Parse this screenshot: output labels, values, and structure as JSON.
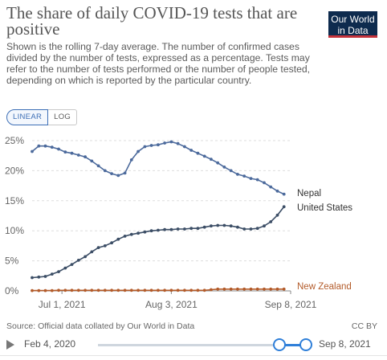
{
  "header": {
    "title": "The share of daily COVID-19 tests that are positive",
    "subtitle": "Shown is the rolling 7-day average. The number of confirmed cases divided by the number of tests, expressed as a percentage. Tests may refer to the number of tests performed or the number of people tested, depending on which is reported by the particular country."
  },
  "logo": {
    "line1": "Our World",
    "line2": "in Data"
  },
  "scale_toggle": {
    "linear": "LINEAR",
    "log": "LOG",
    "active": "LINEAR"
  },
  "footer": {
    "source": "Source: Official data collated by Our World in Data",
    "license": "CC BY"
  },
  "timeline": {
    "start": "Feb 4, 2020",
    "end": "Sep 8, 2021"
  },
  "colors": {
    "nepal": "#4c6a9c",
    "united_states": "#3c4e66",
    "new_zealand": "#b35b2a",
    "grid": "#dddddd",
    "logo_bg": "#0e2b4e",
    "logo_accent": "#c4323a",
    "slider": "#2f7fd9"
  },
  "chart_data": {
    "type": "line",
    "title": "The share of daily COVID-19 tests that are positive",
    "xlabel": "",
    "ylabel": "",
    "y_unit": "%",
    "ylim": [
      0,
      25
    ],
    "yticks": [
      0,
      5,
      10,
      15,
      20,
      25
    ],
    "ytick_labels": [
      "0%",
      "5%",
      "10%",
      "15%",
      "20%",
      "25%"
    ],
    "xlim": [
      "2021-06-22",
      "2021-09-08"
    ],
    "xticks": [
      "2021-07-01",
      "2021-08-03",
      "2021-09-08"
    ],
    "xtick_labels": [
      "Jul 1, 2021",
      "Aug 3, 2021",
      "Sep 8, 2021"
    ],
    "grid": true,
    "legend": "right end labels",
    "series": [
      {
        "name": "Nepal",
        "color": "#4c6a9c",
        "x": [
          "2021-06-22",
          "2021-06-24",
          "2021-06-26",
          "2021-06-28",
          "2021-06-30",
          "2021-07-02",
          "2021-07-04",
          "2021-07-06",
          "2021-07-08",
          "2021-07-10",
          "2021-07-12",
          "2021-07-14",
          "2021-07-16",
          "2021-07-18",
          "2021-07-20",
          "2021-07-22",
          "2021-07-24",
          "2021-07-26",
          "2021-07-28",
          "2021-07-30",
          "2021-08-01",
          "2021-08-03",
          "2021-08-05",
          "2021-08-07",
          "2021-08-09",
          "2021-08-11",
          "2021-08-13",
          "2021-08-15",
          "2021-08-17",
          "2021-08-19",
          "2021-08-21",
          "2021-08-23",
          "2021-08-25",
          "2021-08-27",
          "2021-08-29",
          "2021-08-31",
          "2021-09-02",
          "2021-09-04",
          "2021-09-06"
        ],
        "values": [
          23.2,
          24.1,
          24.1,
          23.9,
          23.6,
          23.1,
          22.9,
          22.6,
          22.3,
          21.6,
          20.8,
          20.0,
          19.5,
          19.2,
          19.6,
          21.8,
          23.2,
          24.0,
          24.2,
          24.3,
          24.6,
          24.8,
          24.5,
          24.0,
          23.4,
          22.9,
          22.4,
          21.9,
          21.3,
          20.6,
          20.0,
          19.4,
          19.1,
          18.7,
          18.5,
          18.0,
          17.3,
          16.6,
          16.1
        ]
      },
      {
        "name": "United States",
        "color": "#3c4e66",
        "x": [
          "2021-06-22",
          "2021-06-24",
          "2021-06-26",
          "2021-06-28",
          "2021-06-30",
          "2021-07-02",
          "2021-07-04",
          "2021-07-06",
          "2021-07-08",
          "2021-07-10",
          "2021-07-12",
          "2021-07-14",
          "2021-07-16",
          "2021-07-18",
          "2021-07-20",
          "2021-07-22",
          "2021-07-24",
          "2021-07-26",
          "2021-07-28",
          "2021-07-30",
          "2021-08-01",
          "2021-08-03",
          "2021-08-05",
          "2021-08-07",
          "2021-08-09",
          "2021-08-11",
          "2021-08-13",
          "2021-08-15",
          "2021-08-17",
          "2021-08-19",
          "2021-08-21",
          "2021-08-23",
          "2021-08-25",
          "2021-08-27",
          "2021-08-29",
          "2021-08-31",
          "2021-09-02",
          "2021-09-04",
          "2021-09-06"
        ],
        "values": [
          2.2,
          2.3,
          2.4,
          2.8,
          3.2,
          3.8,
          4.4,
          5.1,
          5.7,
          6.5,
          7.2,
          7.5,
          8.0,
          8.6,
          9.1,
          9.4,
          9.6,
          9.8,
          10.0,
          10.1,
          10.2,
          10.2,
          10.3,
          10.3,
          10.4,
          10.4,
          10.6,
          10.8,
          10.9,
          10.9,
          10.8,
          10.6,
          10.3,
          10.3,
          10.4,
          10.8,
          11.5,
          12.6,
          14.0
        ]
      },
      {
        "name": "New Zealand",
        "color": "#b35b2a",
        "x": [
          "2021-06-22",
          "2021-06-24",
          "2021-06-26",
          "2021-06-28",
          "2021-06-30",
          "2021-07-02",
          "2021-07-04",
          "2021-07-06",
          "2021-07-08",
          "2021-07-10",
          "2021-07-12",
          "2021-07-14",
          "2021-07-16",
          "2021-07-18",
          "2021-07-20",
          "2021-07-22",
          "2021-07-24",
          "2021-07-26",
          "2021-07-28",
          "2021-07-30",
          "2021-08-01",
          "2021-08-03",
          "2021-08-05",
          "2021-08-07",
          "2021-08-09",
          "2021-08-11",
          "2021-08-13",
          "2021-08-15",
          "2021-08-17",
          "2021-08-19",
          "2021-08-21",
          "2021-08-23",
          "2021-08-25",
          "2021-08-27",
          "2021-08-29",
          "2021-08-31",
          "2021-09-02",
          "2021-09-04",
          "2021-09-06"
        ],
        "values": [
          0.05,
          0.05,
          0.05,
          0.05,
          0.1,
          0.1,
          0.1,
          0.1,
          0.1,
          0.1,
          0.1,
          0.1,
          0.1,
          0.1,
          0.1,
          0.1,
          0.1,
          0.1,
          0.1,
          0.1,
          0.1,
          0.1,
          0.1,
          0.1,
          0.1,
          0.1,
          0.1,
          0.2,
          0.3,
          0.3,
          0.3,
          0.3,
          0.3,
          0.3,
          0.3,
          0.3,
          0.3,
          0.3,
          0.3
        ]
      }
    ]
  }
}
